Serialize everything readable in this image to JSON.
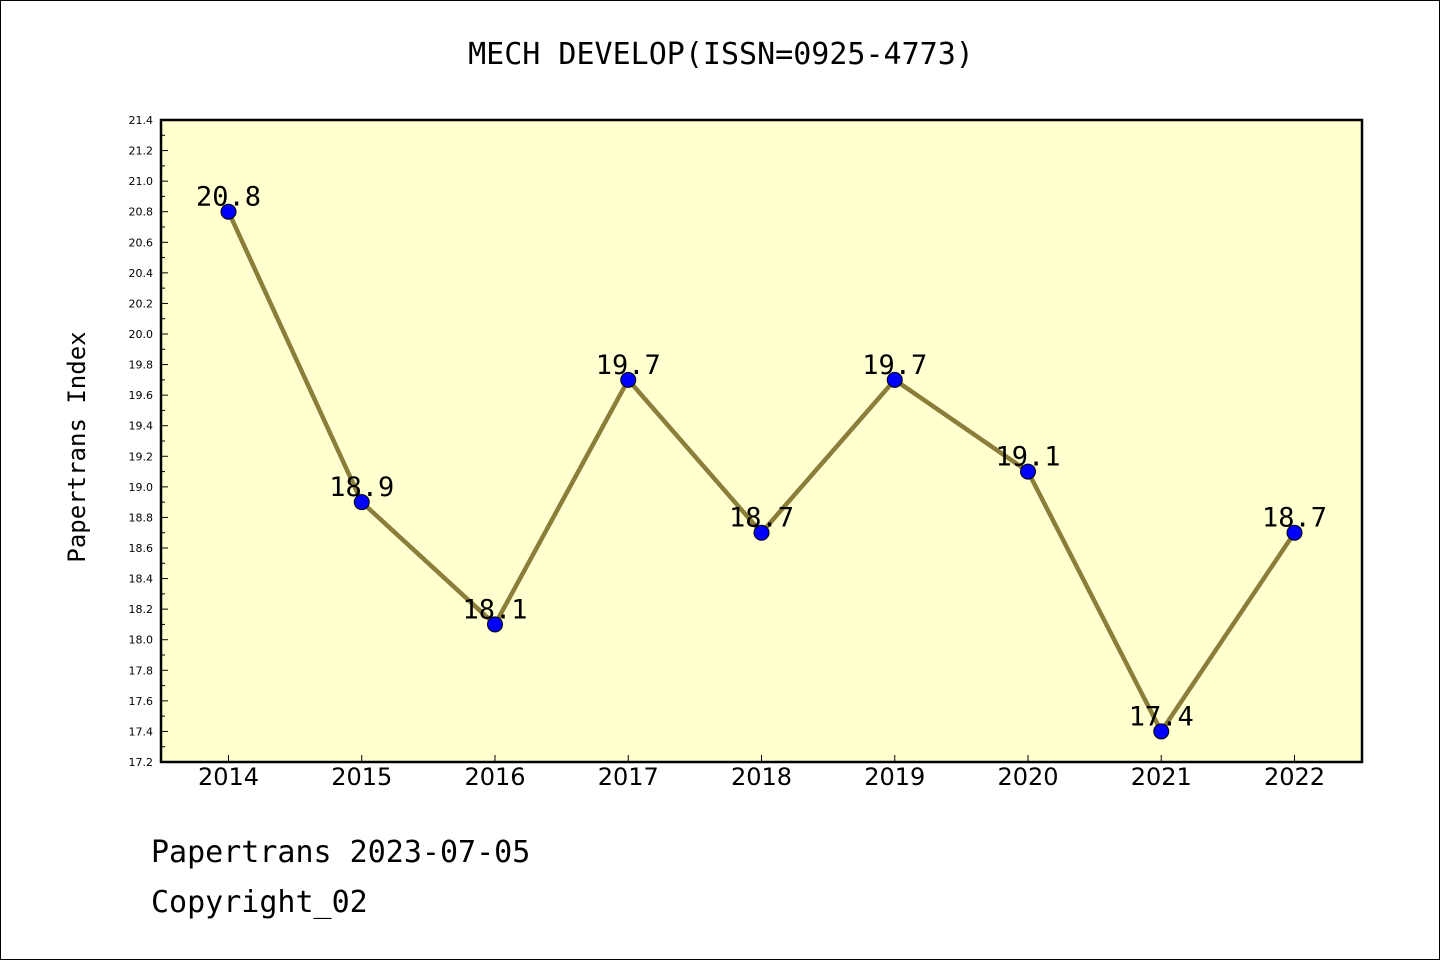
{
  "chart_data": {
    "type": "line",
    "title": "MECH DEVELOP(ISSN=0925-4773)",
    "xlabel": "",
    "ylabel": "Papertrans Index",
    "categories": [
      "2014",
      "2015",
      "2016",
      "2017",
      "2018",
      "2019",
      "2020",
      "2021",
      "2022"
    ],
    "series": [
      {
        "values": [
          20.8,
          18.9,
          18.1,
          19.7,
          18.7,
          19.7,
          19.1,
          17.4,
          18.7
        ]
      }
    ],
    "data_labels": [
      "20.8",
      "18.9",
      "18.1",
      "19.7",
      "18.7",
      "19.7",
      "19.1",
      "17.4",
      "18.7"
    ],
    "ylim": [
      17.2,
      21.4
    ],
    "y_ticks": [
      "17.2",
      "17.4",
      "17.6",
      "17.8",
      "18.0",
      "18.2",
      "18.4",
      "18.6",
      "18.8",
      "19.0",
      "19.2",
      "19.4",
      "19.6",
      "19.8",
      "20.0",
      "20.2",
      "20.4",
      "20.6",
      "20.8",
      "21.0",
      "21.2",
      "21.4"
    ],
    "grid": false,
    "colors": {
      "plot_background": "#ffffd0",
      "line": "#8b7d3a",
      "marker": "#0000ff"
    }
  },
  "footer": {
    "date": "Papertrans 2023-07-05",
    "copyright": "Copyright_02"
  }
}
